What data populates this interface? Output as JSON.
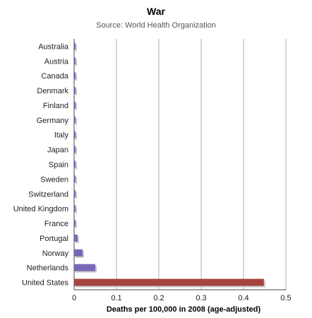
{
  "chart_data": {
    "type": "bar",
    "orientation": "horizontal",
    "title": "War",
    "subtitle": "Source: World Health Organization",
    "xlabel": "Deaths per 100,000 in 2008 (age-adjusted)",
    "ylabel": "",
    "xlim": [
      0,
      0.5
    ],
    "ticks": [
      "0",
      "0.1",
      "0.2",
      "0.3",
      "0.4",
      "0.5"
    ],
    "grid": true,
    "legend": "none",
    "categories": [
      "Australia",
      "Austria",
      "Canada",
      "Denmark",
      "Finland",
      "Germany",
      "Italy",
      "Japan",
      "Spain",
      "Sweden",
      "Switzerland",
      "United Kingdom",
      "France",
      "Portugal",
      "Norway",
      "Netherlands",
      "United States"
    ],
    "values": [
      0.003,
      0.003,
      0.003,
      0.003,
      0.003,
      0.003,
      0.003,
      0.003,
      0.003,
      0.003,
      0.003,
      0.003,
      0.003,
      0.008,
      0.02,
      0.05,
      0.448
    ],
    "highlight_category": "United States",
    "colors": {
      "bar": "#7b68b5",
      "highlight": "#a84440",
      "grid": "#b0b0b0",
      "shadow": "#c8c8c8"
    }
  }
}
